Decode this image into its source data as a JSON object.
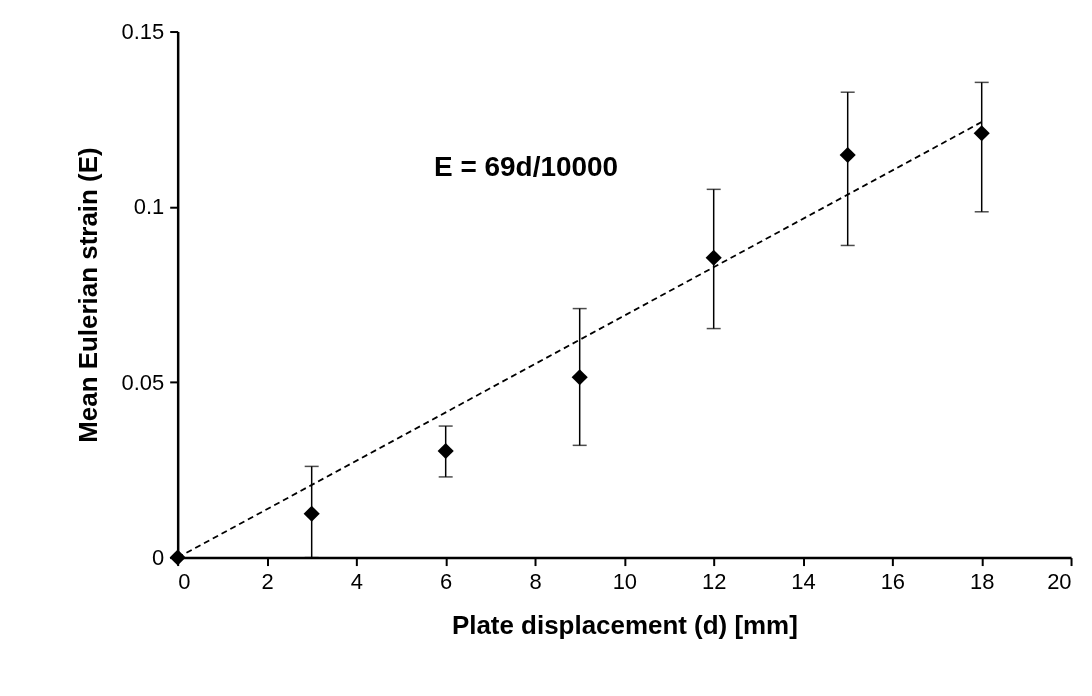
{
  "chart_data": {
    "type": "scatter",
    "xlabel": "Plate displacement (d) [mm]",
    "ylabel": "Mean Eulerian strain (E)",
    "annotations": [
      "E = 69d/10000"
    ],
    "xlim": [
      0,
      20
    ],
    "xticks": [
      0,
      2,
      4,
      6,
      8,
      10,
      12,
      14,
      16,
      18,
      20
    ],
    "ylim": [
      0,
      0.15
    ],
    "yticks": [
      0,
      0.05,
      0.1,
      0.15
    ],
    "grid": false,
    "series": [
      {
        "color": "#000000",
        "marker": "diamond",
        "x": [
          0,
          3,
          6,
          9,
          12,
          15,
          18
        ],
        "values": [
          0,
          0.0125,
          0.0304,
          0.0514,
          0.0855,
          0.1148,
          0.121
        ],
        "errors": [
          null,
          [
            0,
            0.026
          ],
          [
            0.023,
            0.0375
          ],
          [
            0.032,
            0.071
          ],
          [
            0.0653,
            0.105
          ],
          [
            0.089,
            0.1327
          ],
          [
            0.0986,
            0.1355
          ]
        ]
      },
      {
        "type": "line",
        "color": "#000000",
        "line_style": "dashed",
        "x": [
          0,
          18
        ],
        "values": [
          0,
          0.1242
        ]
      }
    ]
  }
}
